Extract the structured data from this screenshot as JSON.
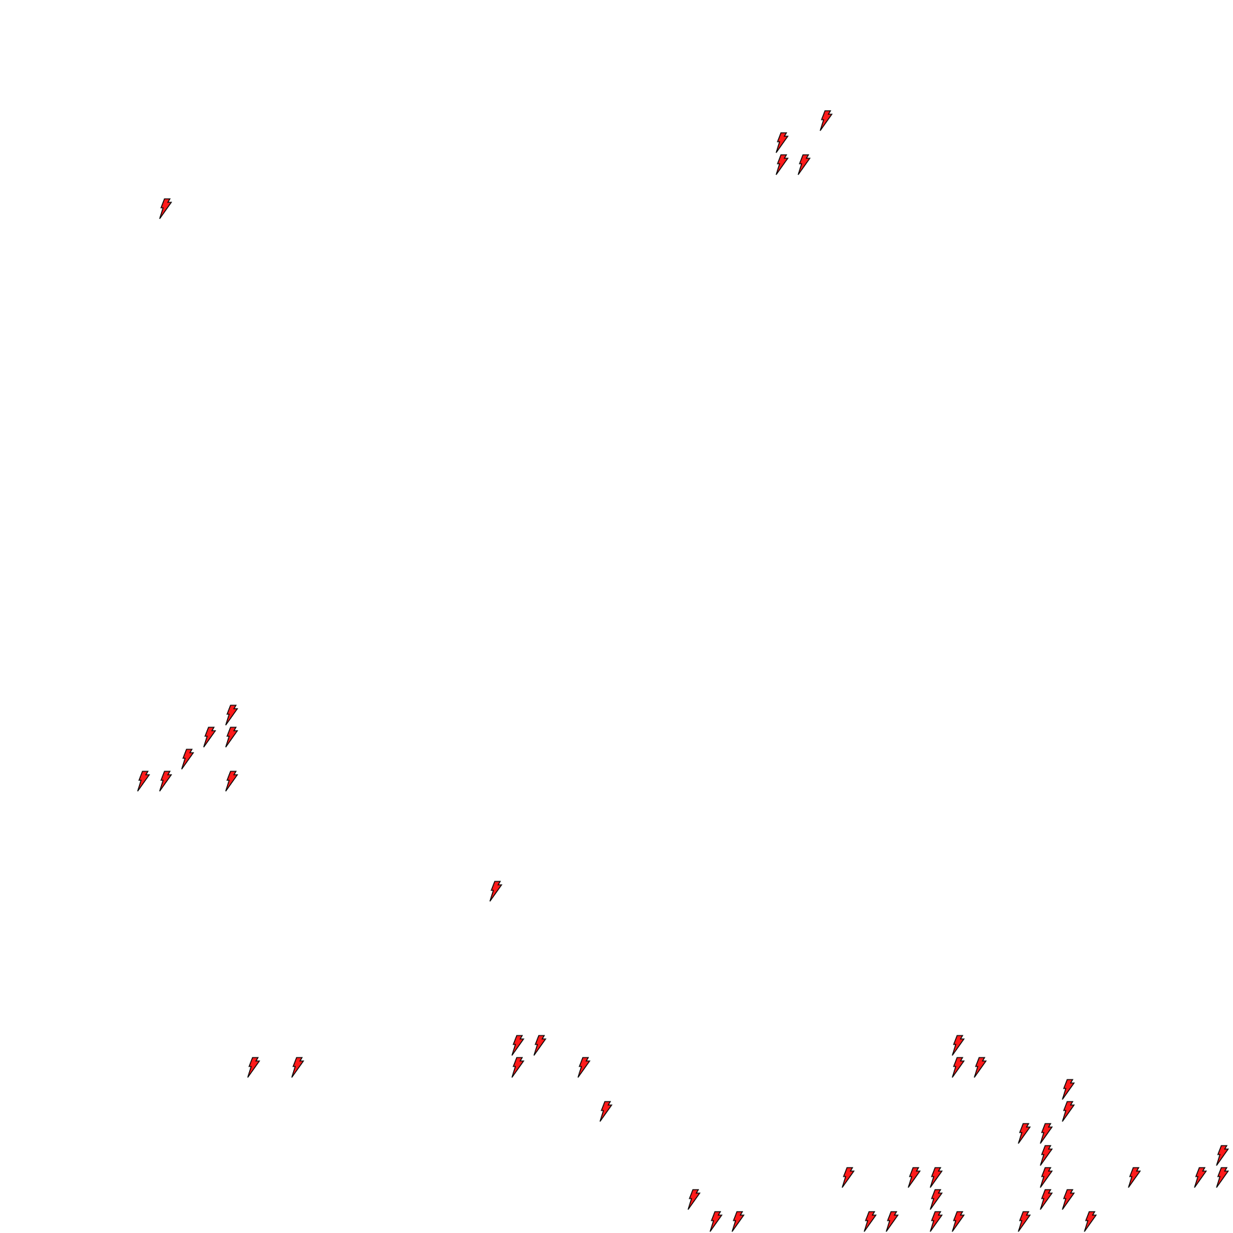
{
  "board": {
    "background": "#ffffff",
    "piece": {
      "icon": "lightning-bolt-icon",
      "fill": "#ff1a1a",
      "stroke": "#000000"
    }
  }
}
